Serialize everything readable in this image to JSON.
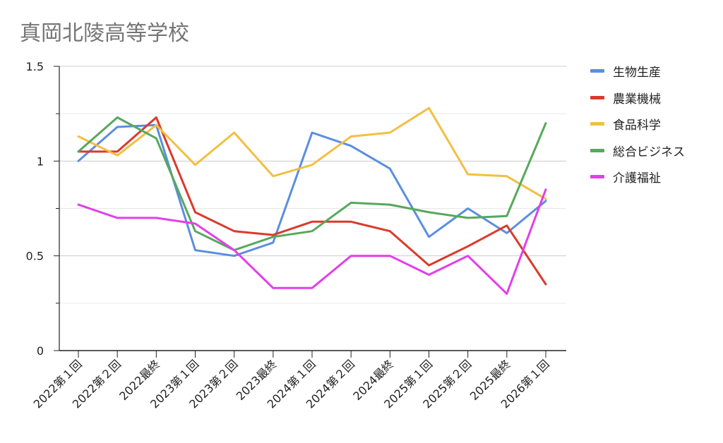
{
  "chart_data": {
    "type": "line",
    "title": "真岡北陵高等学校",
    "xlabel": "",
    "ylabel": "",
    "ylim": [
      0,
      1.5
    ],
    "y_ticks": [
      "0",
      "0.5",
      "1",
      "1.5"
    ],
    "grid": true,
    "legend_position": "right",
    "categories": [
      "2022第１回",
      "2022第２回",
      "2022最終",
      "2023第１回",
      "2023第２回",
      "2023最終",
      "2024第１回",
      "2024第２回",
      "2024最終",
      "2025第１回",
      "2025第２回",
      "2025最終",
      "2026第１回"
    ],
    "series": [
      {
        "name": "生物生産",
        "color": "#5b8ee0",
        "values": [
          1.0,
          1.18,
          1.19,
          0.53,
          0.5,
          0.57,
          1.15,
          1.08,
          0.96,
          0.6,
          0.75,
          0.62,
          0.79
        ]
      },
      {
        "name": "農業機械",
        "color": "#db3a2b",
        "values": [
          1.05,
          1.05,
          1.23,
          0.73,
          0.63,
          0.61,
          0.68,
          0.68,
          0.63,
          0.45,
          0.55,
          0.66,
          0.35
        ]
      },
      {
        "name": "食品科学",
        "color": "#f2bf42",
        "values": [
          1.13,
          1.03,
          1.19,
          0.98,
          1.15,
          0.92,
          0.98,
          1.13,
          1.15,
          1.28,
          0.93,
          0.92,
          0.8
        ]
      },
      {
        "name": "総合ビジネス",
        "color": "#56a85c",
        "values": [
          1.05,
          1.23,
          1.12,
          0.63,
          0.53,
          0.6,
          0.63,
          0.78,
          0.77,
          0.73,
          0.7,
          0.71,
          1.2
        ]
      },
      {
        "name": "介護福祉",
        "color": "#e23fe8",
        "values": [
          0.77,
          0.7,
          0.7,
          0.67,
          0.53,
          0.33,
          0.33,
          0.5,
          0.5,
          0.4,
          0.5,
          0.3,
          0.85
        ]
      }
    ]
  }
}
